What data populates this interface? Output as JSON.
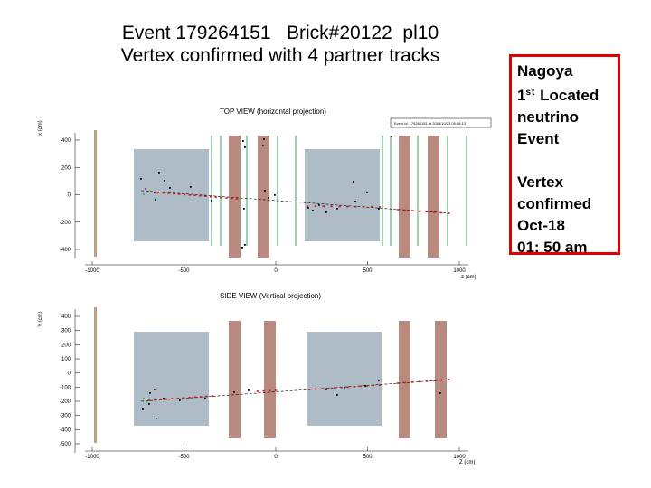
{
  "title": {
    "line1": "Event 179264151   Brick#20122  pl10",
    "line2": "Vertex confirmed with 4 partner tracks"
  },
  "info": {
    "line1": "Nagoya",
    "line2_pre": "1",
    "line2_sup": "st",
    "line2_post": " Located",
    "line3": "neutrino",
    "line4": "Event",
    "line5": "Vertex",
    "line6": "confirmed",
    "line7": "Oct-18",
    "line8": "01: 50 am"
  },
  "top_view": {
    "title": "TOP VIEW (horizontal projection)",
    "y_axis_label": "x (cm)",
    "x_axis_label": "z (cm)",
    "y_ticks": [
      "400",
      "200",
      "0",
      "-200",
      "-400"
    ],
    "x_ticks": [
      "-1000",
      "-500",
      "0",
      "500",
      "1000"
    ],
    "legend": "Event id: 179264151 at 2008/10/23 05:08:13"
  },
  "side_view": {
    "title": "SIDE VIEW (Vertical projection)",
    "y_axis_label": "Y (cm)",
    "x_axis_label": "Z (cm)",
    "y_ticks": [
      "400",
      "300",
      "200",
      "100",
      "0",
      "-100",
      "-200",
      "-300",
      "-400",
      "-500"
    ],
    "x_ticks": [
      "-1000",
      "-500",
      "0",
      "500",
      "1000"
    ]
  },
  "colors": {
    "target_block": "#aebcc8",
    "magnet_wall": "#b98a80",
    "scintillator": "#9fcfb1",
    "brick_column": "#b7a187",
    "track_hits": "#dd1111",
    "info_border": "#e00000"
  }
}
